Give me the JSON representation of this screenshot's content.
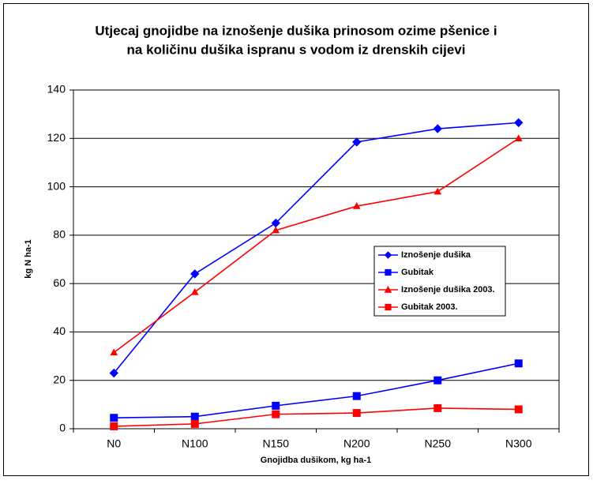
{
  "chart_data": {
    "type": "line",
    "title": "Utjecaj gnojidbe na iznošenje dušika prinosom ozime pšenice i",
    "subtitle": "na količinu dušika ispranu s vodom iz drenskih cijevi",
    "x_label": "Gnojidba dušikom, kg ha-1",
    "y_label": "kg N ha-1",
    "categories": [
      "N0",
      "N100",
      "N150",
      "N200",
      "N250",
      "N300"
    ],
    "series": [
      {
        "name": "Iznošenje dušika",
        "color": "#0000ff",
        "marker": "diamond",
        "values": [
          23,
          64,
          85,
          118.5,
          124,
          126.5
        ]
      },
      {
        "name": "Gubitak",
        "color": "#0000ff",
        "marker": "square",
        "values": [
          4.5,
          5,
          9.5,
          13.5,
          20,
          27
        ]
      },
      {
        "name": "Iznošenje dušika 2003.",
        "color": "#ff0000",
        "marker": "triangle",
        "values": [
          31.5,
          56.5,
          82,
          92,
          98,
          120
        ]
      },
      {
        "name": "Gubitak 2003.",
        "color": "#ff0000",
        "marker": "square",
        "values": [
          1,
          2,
          6,
          6.5,
          8.5,
          8
        ]
      }
    ],
    "ylim": [
      0,
      140
    ],
    "yticks": [
      0,
      20,
      40,
      60,
      80,
      100,
      120,
      140
    ],
    "grid": true
  }
}
